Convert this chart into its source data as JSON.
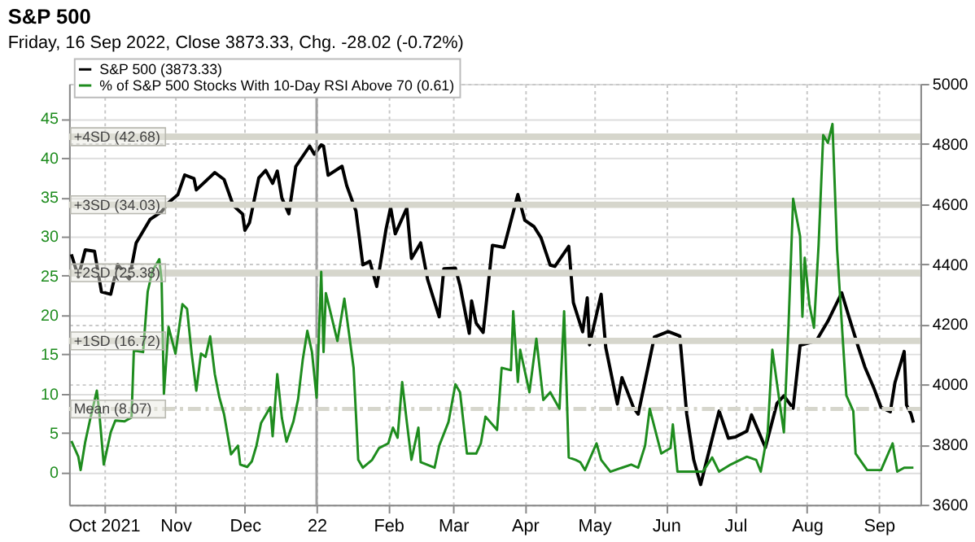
{
  "chart_data": {
    "type": "line",
    "title": "S&P 500",
    "subtitle": "Friday, 16 Sep 2022, Close 3873.33, Chg. -28.02 (-0.72%)",
    "xlim": [
      "2021-09-16",
      "2022-09-19"
    ],
    "xticks": [
      {
        "value": "2021-10-01",
        "label": "Oct 2021"
      },
      {
        "value": "2021-11-01",
        "label": "Nov"
      },
      {
        "value": "2021-12-01",
        "label": "Dec"
      },
      {
        "value": "2022-01-01",
        "label": "22"
      },
      {
        "value": "2022-02-01",
        "label": "Feb"
      },
      {
        "value": "2022-03-01",
        "label": "Mar"
      },
      {
        "value": "2022-04-01",
        "label": "Apr"
      },
      {
        "value": "2022-05-01",
        "label": "May"
      },
      {
        "value": "2022-06-01",
        "label": "Jun"
      },
      {
        "value": "2022-07-01",
        "label": "Jul"
      },
      {
        "value": "2022-08-01",
        "label": "Aug"
      },
      {
        "value": "2022-09-01",
        "label": "Sep"
      }
    ],
    "ylim": [
      -4.1,
      49.4
    ],
    "yticks": [
      0,
      5,
      10,
      15,
      20,
      25,
      30,
      35,
      40,
      45
    ],
    "y2lim": [
      3600,
      5000
    ],
    "y2ticks": [
      3600,
      3800,
      4000,
      4200,
      4400,
      4600,
      4800,
      5000
    ],
    "grid": true,
    "legend": "top left",
    "series": [
      {
        "name": "S&P 500 (3873.33)",
        "color": "#000000",
        "axis": "y2",
        "line_style": "solid",
        "x": [
          "2021-09-17",
          "2021-09-20",
          "2021-09-23",
          "2021-09-27",
          "2021-09-30",
          "2021-10-04",
          "2021-10-07",
          "2021-10-12",
          "2021-10-15",
          "2021-10-21",
          "2021-10-26",
          "2021-10-29",
          "2021-11-02",
          "2021-11-05",
          "2021-11-09",
          "2021-11-10",
          "2021-11-18",
          "2021-11-22",
          "2021-11-26",
          "2021-11-30",
          "2021-12-01",
          "2021-12-03",
          "2021-12-07",
          "2021-12-10",
          "2021-12-13",
          "2021-12-15",
          "2021-12-17",
          "2021-12-20",
          "2021-12-23",
          "2021-12-29",
          "2021-12-31",
          "2022-01-03",
          "2022-01-04",
          "2022-01-06",
          "2022-01-12",
          "2022-01-14",
          "2022-01-18",
          "2022-01-21",
          "2022-01-24",
          "2022-01-27",
          "2022-01-31",
          "2022-02-02",
          "2022-02-04",
          "2022-02-09",
          "2022-02-11",
          "2022-02-15",
          "2022-02-18",
          "2022-02-23",
          "2022-02-25",
          "2022-03-02",
          "2022-03-04",
          "2022-03-08",
          "2022-03-09",
          "2022-03-11",
          "2022-03-14",
          "2022-03-18",
          "2022-03-23",
          "2022-03-29",
          "2022-04-01",
          "2022-04-05",
          "2022-04-08",
          "2022-04-12",
          "2022-04-14",
          "2022-04-20",
          "2022-04-22",
          "2022-04-26",
          "2022-04-28",
          "2022-04-29",
          "2022-05-04",
          "2022-05-06",
          "2022-05-11",
          "2022-05-13",
          "2022-05-18",
          "2022-05-20",
          "2022-05-27",
          "2022-06-02",
          "2022-06-07",
          "2022-06-10",
          "2022-06-13",
          "2022-06-16",
          "2022-06-24",
          "2022-06-28",
          "2022-07-01",
          "2022-07-06",
          "2022-07-08",
          "2022-07-14",
          "2022-07-19",
          "2022-07-22",
          "2022-07-26",
          "2022-07-29",
          "2022-08-05",
          "2022-08-10",
          "2022-08-16",
          "2022-08-19",
          "2022-08-23",
          "2022-08-26",
          "2022-08-30",
          "2022-09-02",
          "2022-09-06",
          "2022-09-08",
          "2022-09-12",
          "2022-09-13",
          "2022-09-15",
          "2022-09-16"
        ],
        "values": [
          4433,
          4358,
          4448,
          4443,
          4308,
          4300,
          4399,
          4351,
          4471,
          4549,
          4575,
          4605,
          4631,
          4697,
          4685,
          4647,
          4705,
          4682,
          4595,
          4567,
          4513,
          4538,
          4687,
          4712,
          4669,
          4710,
          4620,
          4568,
          4725,
          4793,
          4766,
          4797,
          4793,
          4696,
          4726,
          4662,
          4577,
          4398,
          4410,
          4326,
          4516,
          4589,
          4501,
          4587,
          4419,
          4471,
          4349,
          4225,
          4385,
          4387,
          4329,
          4170,
          4278,
          4204,
          4173,
          4463,
          4456,
          4632,
          4546,
          4525,
          4488,
          4397,
          4393,
          4460,
          4272,
          4175,
          4288,
          4132,
          4300,
          4123,
          3935,
          4023,
          3923,
          3901,
          4158,
          4176,
          4161,
          3901,
          3750,
          3667,
          3912,
          3821,
          3825,
          3845,
          3899,
          3790,
          3937,
          3962,
          3921,
          4130,
          4145,
          4210,
          4305,
          4228,
          4128,
          4058,
          3986,
          3924,
          3909,
          4006,
          4110,
          3932,
          3901,
          3873
        ]
      },
      {
        "name": "% of S&P 500 Stocks With 10-Day RSI Above 70 (0.61)",
        "color": "#1e8c1e",
        "line_style": "solid",
        "x": [
          "2021-09-17",
          "2021-09-20",
          "2021-09-21",
          "2021-09-23",
          "2021-09-25",
          "2021-09-28",
          "2021-09-29",
          "2021-10-01",
          "2021-10-04",
          "2021-10-06",
          "2021-10-10",
          "2021-10-13",
          "2021-10-14",
          "2021-10-18",
          "2021-10-20",
          "2021-10-22",
          "2021-10-25",
          "2021-10-26",
          "2021-10-27",
          "2021-10-29",
          "2021-11-01",
          "2021-11-04",
          "2021-11-06",
          "2021-11-08",
          "2021-11-10",
          "2021-11-12",
          "2021-11-14",
          "2021-11-16",
          "2021-11-18",
          "2021-11-20",
          "2021-11-22",
          "2021-11-25",
          "2021-11-28",
          "2021-11-29",
          "2021-12-02",
          "2021-12-04",
          "2021-12-06",
          "2021-12-08",
          "2021-12-12",
          "2021-12-13",
          "2021-12-15",
          "2021-12-17",
          "2021-12-19",
          "2021-12-22",
          "2021-12-24",
          "2021-12-26",
          "2021-12-28",
          "2021-12-30",
          "2022-01-01",
          "2022-01-03",
          "2022-01-04",
          "2022-01-05",
          "2022-01-10",
          "2022-01-13",
          "2022-01-17",
          "2022-01-19",
          "2022-01-21",
          "2022-01-25",
          "2022-01-28",
          "2022-02-01",
          "2022-02-03",
          "2022-02-05",
          "2022-02-07",
          "2022-02-09",
          "2022-02-11",
          "2022-02-14",
          "2022-02-15",
          "2022-02-21",
          "2022-02-23",
          "2022-02-27",
          "2022-03-02",
          "2022-03-04",
          "2022-03-07",
          "2022-03-11",
          "2022-03-13",
          "2022-03-15",
          "2022-03-20",
          "2022-03-22",
          "2022-03-26",
          "2022-03-27",
          "2022-03-29",
          "2022-03-30",
          "2022-04-03",
          "2022-04-06",
          "2022-04-09",
          "2022-04-12",
          "2022-04-16",
          "2022-04-18",
          "2022-04-20",
          "2022-04-23",
          "2022-04-25",
          "2022-04-27",
          "2022-05-02",
          "2022-05-04",
          "2022-05-08",
          "2022-05-13",
          "2022-05-17",
          "2022-05-20",
          "2022-05-23",
          "2022-05-25",
          "2022-05-30",
          "2022-06-03",
          "2022-06-04",
          "2022-06-06",
          "2022-06-17",
          "2022-06-21",
          "2022-06-24",
          "2022-06-29",
          "2022-07-06",
          "2022-07-10",
          "2022-07-12",
          "2022-07-15",
          "2022-07-17",
          "2022-07-20",
          "2022-07-22",
          "2022-07-24",
          "2022-07-26",
          "2022-07-29",
          "2022-07-30",
          "2022-07-31",
          "2022-08-02",
          "2022-08-04",
          "2022-08-06",
          "2022-08-08",
          "2022-08-10",
          "2022-08-12",
          "2022-08-14",
          "2022-08-18",
          "2022-08-21",
          "2022-08-22",
          "2022-08-27",
          "2022-09-02",
          "2022-09-07",
          "2022-09-09",
          "2022-09-12",
          "2022-09-16"
        ],
        "values": [
          4.0,
          2.0,
          0.3,
          3.9,
          6.6,
          10.4,
          7.8,
          1.0,
          5.1,
          6.6,
          6.5,
          7.0,
          15.5,
          15.3,
          23.0,
          25.6,
          27.1,
          24.4,
          10.0,
          18.5,
          15.1,
          21.4,
          20.8,
          15.1,
          10.4,
          15.1,
          14.7,
          17.3,
          12.5,
          9.5,
          7.4,
          2.3,
          3.4,
          1.0,
          0.7,
          1.4,
          3.4,
          6.3,
          8.3,
          4.6,
          12.5,
          6.9,
          3.9,
          6.5,
          9.3,
          14.3,
          18.0,
          15.3,
          9.5,
          25.5,
          15.3,
          22.8,
          16.7,
          22.1,
          13.3,
          1.6,
          0.6,
          1.6,
          3.1,
          3.7,
          5.7,
          4.4,
          11.5,
          6.4,
          1.6,
          5.7,
          1.3,
          0.6,
          3.4,
          6.4,
          11.2,
          10.2,
          2.4,
          2.4,
          3.7,
          7.1,
          5.4,
          13.3,
          13.0,
          20.5,
          11.5,
          15.6,
          10.2,
          17.0,
          9.2,
          10.2,
          8.1,
          20.5,
          1.9,
          1.6,
          1.3,
          0.3,
          3.7,
          1.6,
          0.1,
          0.6,
          1.0,
          0.6,
          3.4,
          8.1,
          2.4,
          3.1,
          6.1,
          0.1,
          0.1,
          1.9,
          0.1,
          1.0,
          2.0,
          1.6,
          0.1,
          5.1,
          15.6,
          9.2,
          5.1,
          18.7,
          34.8,
          30.0,
          19.8,
          27.3,
          21.4,
          18.4,
          28.9,
          42.9,
          41.9,
          44.3,
          28.3,
          9.8,
          7.8,
          2.4,
          0.3,
          0.3,
          3.7,
          0.1,
          0.6,
          0.61
        ]
      }
    ],
    "ref_lines": [
      {
        "axis": "y",
        "value": 42.68,
        "label": "+4SD (42.68)",
        "color": "#d6d6cc",
        "line_style": "solid"
      },
      {
        "axis": "y",
        "value": 34.03,
        "label": "+3SD (34.03)",
        "color": "#d6d6cc",
        "line_style": "solid"
      },
      {
        "axis": "y",
        "value": 25.38,
        "label": "+2SD (25.38)",
        "color": "#d6d6cc",
        "line_style": "solid"
      },
      {
        "axis": "y",
        "value": 16.72,
        "label": "+1SD (16.72)",
        "color": "#d6d6cc",
        "line_style": "solid"
      },
      {
        "axis": "y",
        "value": 8.07,
        "label": "Mean (8.07)",
        "color": "#d6d6cc",
        "line_style": "dashed"
      },
      {
        "axis": "x",
        "value": "2022-01-01",
        "color": "#a0a0a0",
        "line_style": "solid"
      }
    ]
  }
}
